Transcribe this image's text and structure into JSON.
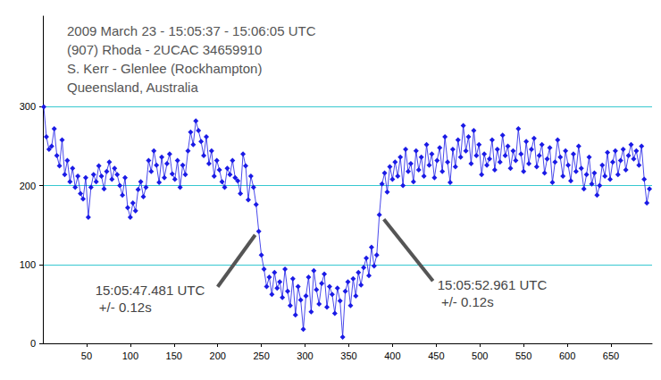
{
  "chart_data": {
    "type": "line",
    "title": "2009 March 23 - 15:05:37 - 15:06:05 UTC",
    "subtitle": [
      "(907) Rhoda - 2UCAC 34659910",
      "S. Kerr - Glenlee (Rockhampton)",
      "Queensland, Australia"
    ],
    "annotations": [
      {
        "text": [
          "15:05:47.481 UTC",
          " +/- 0.12s"
        ],
        "x": 247,
        "y": 142
      },
      {
        "text": [
          "15:05:52.961 UTC",
          " +/- 0.12s"
        ],
        "x": 385,
        "y": 163
      }
    ],
    "x": [
      1,
      4,
      7,
      10,
      13,
      16,
      19,
      22,
      25,
      28,
      31,
      34,
      37,
      40,
      43,
      46,
      49,
      52,
      55,
      58,
      61,
      64,
      67,
      70,
      73,
      76,
      79,
      82,
      85,
      88,
      91,
      94,
      97,
      100,
      103,
      106,
      109,
      112,
      115,
      118,
      121,
      124,
      127,
      130,
      133,
      136,
      139,
      142,
      145,
      148,
      151,
      154,
      157,
      160,
      163,
      166,
      169,
      172,
      175,
      178,
      181,
      184,
      187,
      190,
      193,
      196,
      199,
      202,
      205,
      208,
      211,
      214,
      217,
      220,
      223,
      226,
      229,
      232,
      235,
      238,
      241,
      244,
      247,
      250,
      253,
      256,
      259,
      262,
      265,
      268,
      271,
      274,
      277,
      280,
      283,
      286,
      289,
      292,
      295,
      298,
      301,
      304,
      307,
      310,
      313,
      316,
      319,
      322,
      325,
      328,
      331,
      334,
      337,
      340,
      343,
      346,
      349,
      352,
      355,
      358,
      361,
      364,
      367,
      370,
      373,
      376,
      379,
      382,
      385,
      388,
      391,
      394,
      397,
      400,
      403,
      406,
      409,
      412,
      415,
      418,
      421,
      424,
      427,
      430,
      433,
      436,
      439,
      442,
      445,
      448,
      451,
      454,
      457,
      460,
      463,
      466,
      469,
      472,
      475,
      478,
      481,
      484,
      487,
      490,
      493,
      496,
      499,
      502,
      505,
      508,
      511,
      514,
      517,
      520,
      523,
      526,
      529,
      532,
      535,
      538,
      541,
      544,
      547,
      550,
      553,
      556,
      559,
      562,
      565,
      568,
      571,
      574,
      577,
      580,
      583,
      586,
      589,
      592,
      595,
      598,
      601,
      604,
      607,
      610,
      613,
      616,
      619,
      622,
      625,
      628,
      631,
      634,
      637,
      640,
      643,
      646,
      649,
      652,
      655,
      658,
      661,
      664,
      667,
      670,
      673,
      676,
      679,
      682,
      685,
      688,
      691,
      694
    ],
    "series": [
      {
        "name": "2UCAC 34659910",
        "color": "#1a1ae6",
        "marker": "diamond",
        "line_style": "solid",
        "values": [
          300,
          262,
          246,
          250,
          272,
          238,
          225,
          258,
          214,
          232,
          205,
          222,
          198,
          212,
          190,
          183,
          210,
          160,
          198,
          214,
          205,
          225,
          212,
          196,
          218,
          230,
          208,
          222,
          214,
          200,
          188,
          210,
          172,
          160,
          178,
          168,
          195,
          205,
          186,
          198,
          232,
          218,
          244,
          226,
          204,
          236,
          210,
          228,
          240,
          215,
          208,
          232,
          198,
          226,
          214,
          244,
          268,
          252,
          282,
          270,
          256,
          238,
          262,
          228,
          244,
          212,
          232,
          220,
          205,
          198,
          222,
          214,
          232,
          210,
          206,
          190,
          240,
          225,
          182,
          212,
          198,
          176,
          142,
          112,
          94,
          72,
          84,
          62,
          90,
          70,
          78,
          58,
          94,
          66,
          48,
          82,
          36,
          72,
          55,
          18,
          60,
          84,
          40,
          92,
          68,
          50,
          76,
          88,
          46,
          72,
          62,
          38,
          70,
          54,
          8,
          66,
          78,
          48,
          82,
          60,
          90,
          74,
          96,
          108,
          86,
          122,
          98,
          112,
          163,
          202,
          216,
          192,
          224,
          208,
          230,
          212,
          236,
          200,
          246,
          218,
          228,
          205,
          244,
          220,
          236,
          212,
          252,
          226,
          240,
          210,
          232,
          248,
          218,
          262,
          230,
          204,
          246,
          224,
          258,
          236,
          276,
          244,
          262,
          228,
          270,
          238,
          252,
          214,
          240,
          226,
          234,
          258,
          220,
          246,
          230,
          264,
          238,
          250,
          222,
          244,
          232,
          272,
          240,
          218,
          256,
          228,
          246,
          260,
          224,
          238,
          252,
          216,
          234,
          248,
          204,
          230,
          258,
          236,
          212,
          244,
          226,
          206,
          240,
          218,
          250,
          222,
          196,
          214,
          236,
          202,
          216,
          188,
          200,
          226,
          212,
          242,
          208,
          230,
          244,
          214,
          232,
          246,
          220,
          238,
          252,
          234,
          244,
          226,
          250,
          208,
          178,
          196
        ]
      }
    ],
    "xlim": [
      0,
      697
    ],
    "xticks": [
      50,
      100,
      150,
      200,
      250,
      300,
      350,
      400,
      450,
      500,
      550,
      600,
      650
    ],
    "ylim": [
      0,
      415
    ],
    "yticks": [
      0,
      100,
      200,
      300
    ],
    "grid": true
  }
}
